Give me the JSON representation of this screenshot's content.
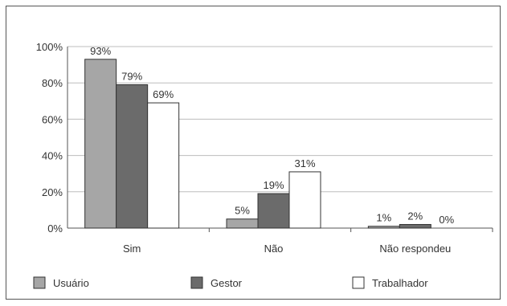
{
  "chart_data": {
    "type": "bar",
    "categories": [
      "Sim",
      "Não",
      "Não respondeu"
    ],
    "series": [
      {
        "name": "Usuário",
        "values": [
          93,
          5,
          1
        ],
        "labels": [
          "93%",
          "5%",
          "1%"
        ],
        "color": "#a6a6a6"
      },
      {
        "name": "Gestor",
        "values": [
          79,
          19,
          2
        ],
        "labels": [
          "79%",
          "19%",
          "2%"
        ],
        "color": "#6b6b6b"
      },
      {
        "name": "Trabalhador",
        "values": [
          69,
          31,
          0
        ],
        "labels": [
          "69%",
          "31%",
          "0%"
        ],
        "color": "#ffffff"
      }
    ],
    "ylim": [
      0,
      100
    ],
    "yticks": [
      0,
      20,
      40,
      60,
      80,
      100
    ],
    "ytick_labels": [
      "0%",
      "20%",
      "40%",
      "60%",
      "80%",
      "100%"
    ],
    "grid": true,
    "legend_position": "bottom"
  }
}
